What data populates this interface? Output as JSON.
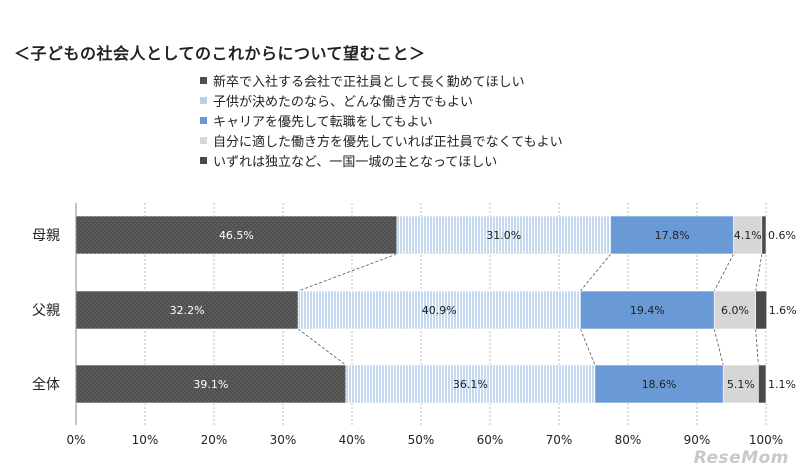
{
  "title": "＜子どもの社会人としてのこれからについて望むこと＞",
  "watermark": "ReseMom",
  "chart_data": {
    "type": "bar",
    "orientation": "horizontal-stacked-100",
    "categories": [
      "母親",
      "父親",
      "全体"
    ],
    "xlim": [
      0,
      100
    ],
    "ticks": [
      "0%",
      "10%",
      "20%",
      "30%",
      "40%",
      "50%",
      "60%",
      "70%",
      "80%",
      "90%",
      "100%"
    ],
    "grid": true,
    "legend_position": "top",
    "series": [
      {
        "name": "新卒で入社する会社で正社員として長く勤めてほしい",
        "values": [
          46.5,
          32.2,
          39.1
        ],
        "labels": [
          "46.5%",
          "32.2%",
          "39.1%"
        ],
        "color": "#505050"
      },
      {
        "name": "子供が決めたのなら、どんな働き方でもよい",
        "values": [
          31.0,
          40.9,
          36.1
        ],
        "labels": [
          "31.0%",
          "40.9%",
          "36.1%"
        ],
        "color": "#b8d0ea"
      },
      {
        "name": "キャリアを優先して転職をしてもよい",
        "values": [
          17.8,
          19.4,
          18.6
        ],
        "labels": [
          "17.8%",
          "19.4%",
          "18.6%"
        ],
        "color": "#6a9ad6"
      },
      {
        "name": "自分に適した働き方を優先していれば正社員でなくてもよい",
        "values": [
          4.1,
          6.0,
          5.1
        ],
        "labels": [
          "4.1%",
          "6.0%",
          "5.1%"
        ],
        "color": "#d6d6d6"
      },
      {
        "name": "いずれは独立など、一国一城の主となってほしい",
        "values": [
          0.6,
          1.6,
          1.1
        ],
        "labels": [
          "0.6%",
          "1.6%",
          "1.1%"
        ],
        "color": "#4a4a4a"
      }
    ]
  }
}
